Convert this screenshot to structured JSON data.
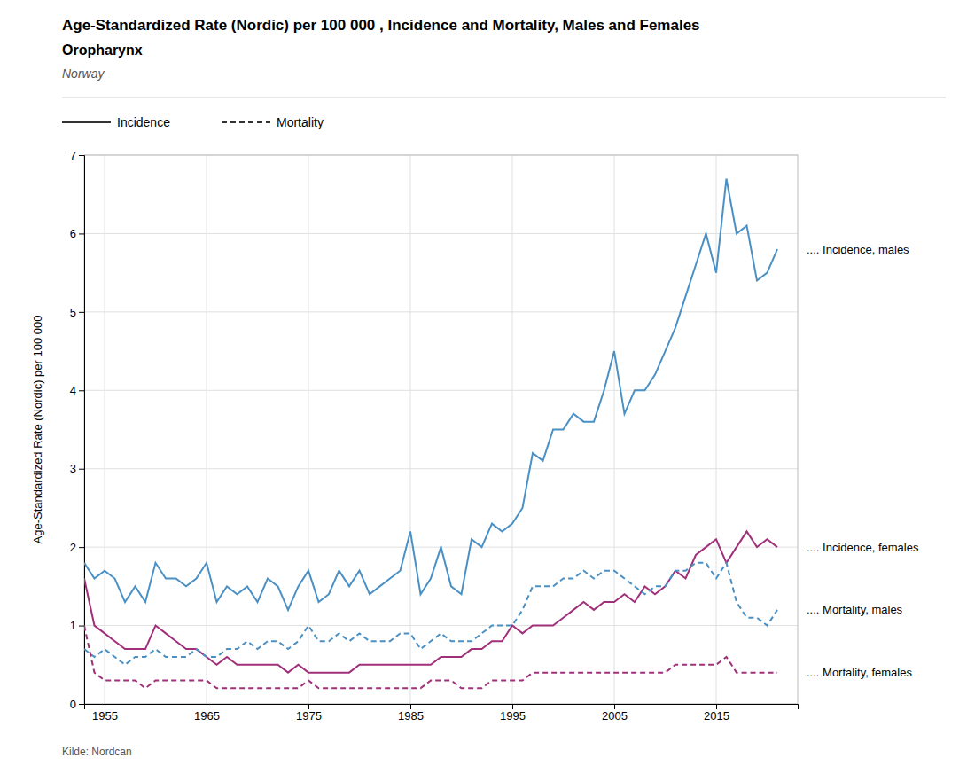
{
  "chart_data": {
    "type": "line",
    "title": "Age-Standardized Rate (Nordic) per 100 000 , Incidence and Mortality, Males and Females",
    "subtitle": "Oropharynx",
    "subtitle2": "Norway",
    "ylabel": "Age-Standardized Rate (Nordic) per 100 000",
    "source": "Kilde: Nordcan",
    "annotations": [
      {
        "text": "Incidence",
        "line_style": "solid"
      },
      {
        "text": "Mortality",
        "line_style": "dashed"
      }
    ],
    "x": [
      1953,
      1954,
      1955,
      1956,
      1957,
      1958,
      1959,
      1960,
      1961,
      1962,
      1963,
      1964,
      1965,
      1966,
      1967,
      1968,
      1969,
      1970,
      1971,
      1972,
      1973,
      1974,
      1975,
      1976,
      1977,
      1978,
      1979,
      1980,
      1981,
      1982,
      1983,
      1984,
      1985,
      1986,
      1987,
      1988,
      1989,
      1990,
      1991,
      1992,
      1993,
      1994,
      1995,
      1996,
      1997,
      1998,
      1999,
      2000,
      2001,
      2002,
      2003,
      2004,
      2005,
      2006,
      2007,
      2008,
      2009,
      2010,
      2011,
      2012,
      2013,
      2014,
      2015,
      2016,
      2017,
      2018,
      2019,
      2020,
      2021
    ],
    "xlim": [
      1953,
      2023
    ],
    "xticks": [
      1955,
      1965,
      1975,
      1985,
      1995,
      2005,
      2015
    ],
    "ylim": [
      0,
      7
    ],
    "yticks": [
      0,
      1,
      2,
      3,
      4,
      5,
      6,
      7
    ],
    "grid": true,
    "series": [
      {
        "name": ".... Incidence, males",
        "color": "#4a90c4",
        "line_style": "solid",
        "values": [
          1.8,
          1.6,
          1.7,
          1.6,
          1.3,
          1.5,
          1.3,
          1.8,
          1.6,
          1.6,
          1.5,
          1.6,
          1.8,
          1.3,
          1.5,
          1.4,
          1.5,
          1.3,
          1.6,
          1.5,
          1.2,
          1.5,
          1.7,
          1.3,
          1.4,
          1.7,
          1.5,
          1.7,
          1.4,
          1.5,
          1.6,
          1.7,
          2.2,
          1.4,
          1.6,
          2.0,
          1.5,
          1.4,
          2.1,
          2.0,
          2.3,
          2.2,
          2.3,
          2.5,
          3.2,
          3.1,
          3.5,
          3.5,
          3.7,
          3.6,
          3.6,
          4.0,
          4.5,
          3.7,
          4.0,
          4.0,
          4.2,
          4.5,
          4.8,
          5.2,
          5.6,
          6.0,
          5.5,
          6.7,
          6.0,
          6.1,
          5.4,
          5.5,
          5.8
        ]
      },
      {
        "name": ".... Incidence, females",
        "color": "#a0307a",
        "line_style": "solid",
        "values": [
          1.6,
          1.0,
          0.9,
          0.8,
          0.7,
          0.7,
          0.7,
          1.0,
          0.9,
          0.8,
          0.7,
          0.7,
          0.6,
          0.5,
          0.6,
          0.5,
          0.5,
          0.5,
          0.5,
          0.5,
          0.4,
          0.5,
          0.4,
          0.4,
          0.4,
          0.4,
          0.4,
          0.5,
          0.5,
          0.5,
          0.5,
          0.5,
          0.5,
          0.5,
          0.5,
          0.6,
          0.6,
          0.6,
          0.7,
          0.7,
          0.8,
          0.8,
          1.0,
          0.9,
          1.0,
          1.0,
          1.0,
          1.1,
          1.2,
          1.3,
          1.2,
          1.3,
          1.3,
          1.4,
          1.3,
          1.5,
          1.4,
          1.5,
          1.7,
          1.6,
          1.9,
          2.0,
          2.1,
          1.8,
          2.0,
          2.2,
          2.0,
          2.1,
          2.0
        ]
      },
      {
        "name": ".... Mortality, males",
        "color": "#4a90c4",
        "line_style": "dashed",
        "values": [
          0.7,
          0.6,
          0.7,
          0.6,
          0.5,
          0.6,
          0.6,
          0.7,
          0.6,
          0.6,
          0.6,
          0.7,
          0.6,
          0.6,
          0.7,
          0.7,
          0.8,
          0.7,
          0.8,
          0.8,
          0.7,
          0.8,
          1.0,
          0.8,
          0.8,
          0.9,
          0.8,
          0.9,
          0.8,
          0.8,
          0.8,
          0.9,
          0.9,
          0.7,
          0.8,
          0.9,
          0.8,
          0.8,
          0.8,
          0.9,
          1.0,
          1.0,
          1.0,
          1.2,
          1.5,
          1.5,
          1.5,
          1.6,
          1.6,
          1.7,
          1.6,
          1.7,
          1.7,
          1.6,
          1.5,
          1.4,
          1.5,
          1.5,
          1.7,
          1.7,
          1.8,
          1.8,
          1.6,
          1.8,
          1.3,
          1.1,
          1.1,
          1.0,
          1.2
        ]
      },
      {
        "name": ".... Mortality, females",
        "color": "#a0307a",
        "line_style": "dashed",
        "values": [
          1.0,
          0.4,
          0.3,
          0.3,
          0.3,
          0.3,
          0.2,
          0.3,
          0.3,
          0.3,
          0.3,
          0.3,
          0.3,
          0.2,
          0.2,
          0.2,
          0.2,
          0.2,
          0.2,
          0.2,
          0.2,
          0.2,
          0.3,
          0.2,
          0.2,
          0.2,
          0.2,
          0.2,
          0.2,
          0.2,
          0.2,
          0.2,
          0.2,
          0.2,
          0.3,
          0.3,
          0.3,
          0.2,
          0.2,
          0.2,
          0.3,
          0.3,
          0.3,
          0.3,
          0.4,
          0.4,
          0.4,
          0.4,
          0.4,
          0.4,
          0.4,
          0.4,
          0.4,
          0.4,
          0.4,
          0.4,
          0.4,
          0.4,
          0.5,
          0.5,
          0.5,
          0.5,
          0.5,
          0.6,
          0.4,
          0.4,
          0.4,
          0.4,
          0.4
        ]
      }
    ]
  }
}
